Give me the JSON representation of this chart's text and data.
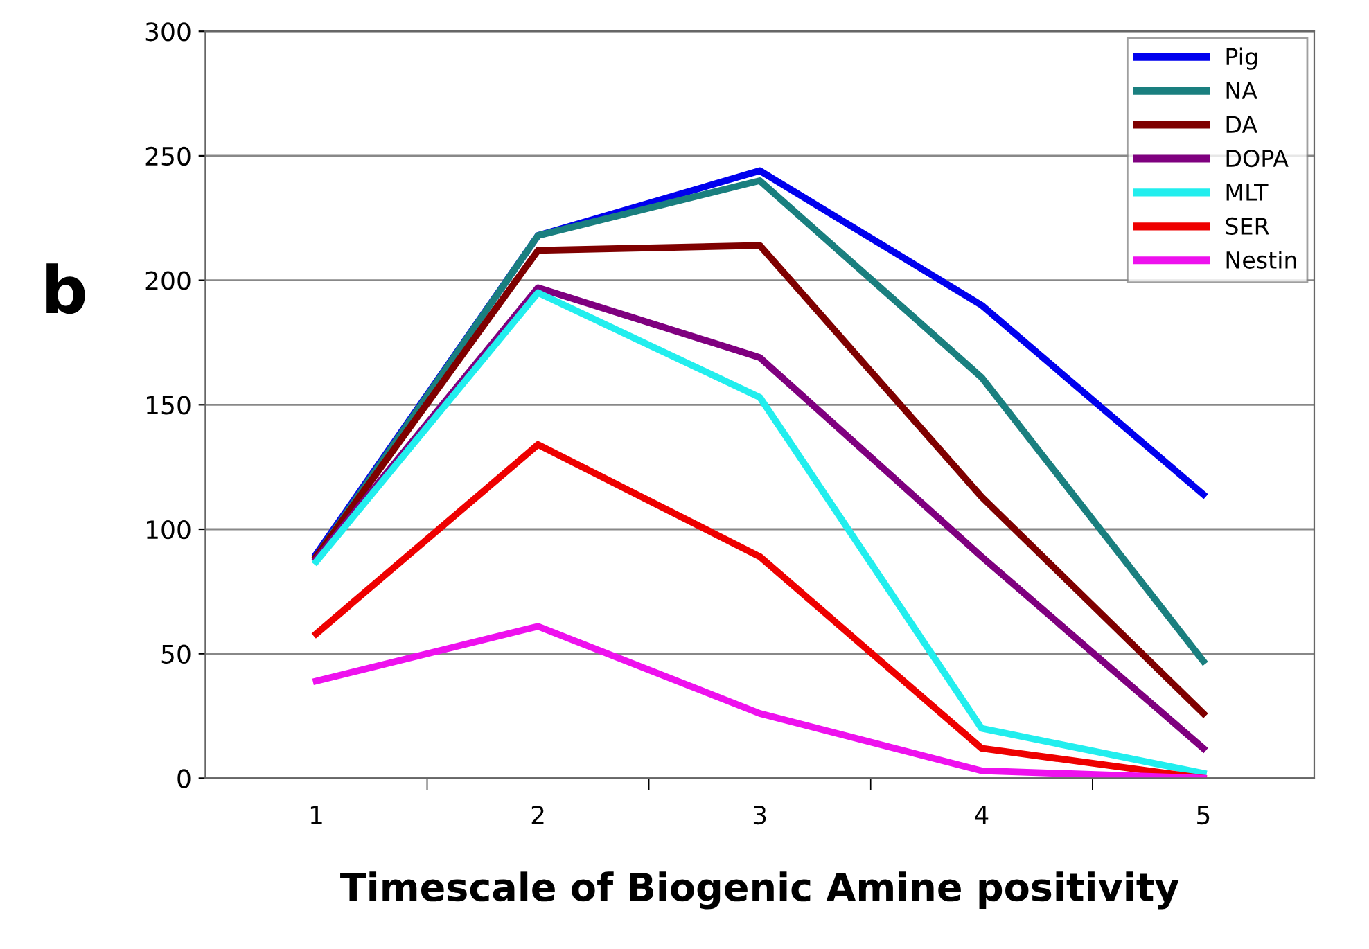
{
  "chart_data": {
    "type": "line",
    "xlabel": "Timescale of Biogenic Amine positivity",
    "categories": [
      "1",
      "2",
      "3",
      "4",
      "5"
    ],
    "series": [
      {
        "name": "Pig",
        "color": "#0000ee",
        "values": [
          90,
          218,
          244,
          190,
          114
        ]
      },
      {
        "name": "NA",
        "color": "#1a7f7f",
        "values": [
          89,
          218,
          240,
          161,
          47
        ]
      },
      {
        "name": "DA",
        "color": "#7f0000",
        "values": [
          89,
          212,
          214,
          113,
          26
        ]
      },
      {
        "name": "DOPA",
        "color": "#7f007f",
        "values": [
          88,
          197,
          169,
          89,
          12
        ]
      },
      {
        "name": "MLT",
        "color": "#22eeee",
        "values": [
          87,
          195,
          153,
          20,
          2
        ]
      },
      {
        "name": "SER",
        "color": "#ee0000",
        "values": [
          58,
          134,
          89,
          12,
          0
        ]
      },
      {
        "name": "Nestin",
        "color": "#ee11ee",
        "values": [
          39,
          61,
          26,
          3,
          0
        ]
      }
    ],
    "ylim": [
      0,
      300
    ],
    "yticks": [
      0,
      50,
      100,
      150,
      200,
      250,
      300
    ],
    "grid": "y",
    "legend": "top right",
    "marker": "none",
    "line_style": "solid",
    "annotations": [
      "b"
    ]
  }
}
